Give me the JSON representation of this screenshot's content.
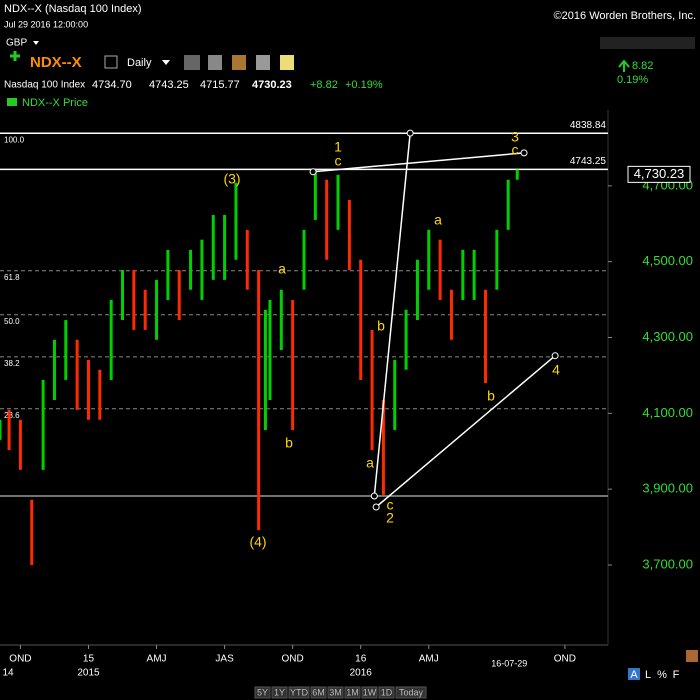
{
  "header": {
    "title": "NDX--X (Nasdaq 100 Index)",
    "datetime": "Jul 29 2016 12:00:00",
    "copyright": "©2016 Worden Brothers, Inc.",
    "currency": "GBP",
    "symbol": "NDX--X",
    "period": "Daily",
    "name": "Nasdaq 100 Index",
    "open": "4734.70",
    "high": "4743.25",
    "low": "4715.77",
    "last": "4730.23",
    "change": "+8.82",
    "change_pct": "+0.19%",
    "legend": "NDX--X Price",
    "side_change": "8.82",
    "side_change_pct": "0.19%"
  },
  "toolbar": [
    "5Y",
    "1Y",
    "YTD",
    "6M",
    "3M",
    "1M",
    "1W",
    "1D",
    "Today"
  ],
  "corner_buttons": [
    "A",
    "L",
    "%",
    "F"
  ],
  "chart_data": {
    "type": "ohlc",
    "x": [
      -0.9,
      -0.5,
      0,
      0.5,
      1,
      1.5,
      2,
      2.5,
      3,
      3.5,
      4,
      4.5,
      5,
      5.5,
      6,
      6.5,
      7,
      7.5,
      8,
      8.5,
      9,
      9.5,
      10,
      10.5,
      10.8,
      11,
      11.5,
      12,
      12.5,
      13,
      13.5,
      14,
      14.5,
      15,
      15.5,
      16,
      16.5,
      17,
      17.5,
      18,
      18.5,
      19,
      19.5,
      20,
      20.5,
      21,
      21.5,
      21.9
    ],
    "high": [
      4083,
      4109,
      4083,
      3872,
      4188,
      4294,
      4346,
      4294,
      4241,
      4215,
      4399,
      4478,
      4478,
      4426,
      4452,
      4531,
      4478,
      4531,
      4558,
      4623,
      4623,
      4708,
      4584,
      4478,
      4373,
      4399,
      4426,
      4399,
      4584,
      4742,
      4716,
      4729,
      4663,
      4505,
      4320,
      4135,
      4241,
      4373,
      4505,
      4584,
      4558,
      4426,
      4531,
      4531,
      4426,
      4584,
      4716,
      4743
    ],
    "low": [
      4030,
      4003,
      3951,
      3700,
      3951,
      4135,
      4188,
      4109,
      4083,
      4083,
      4188,
      4346,
      4320,
      4320,
      4294,
      4399,
      4346,
      4426,
      4399,
      4452,
      4452,
      4505,
      4426,
      3792,
      4056,
      4135,
      4267,
      4056,
      4426,
      4610,
      4505,
      4584,
      4478,
      4188,
      4003,
      3885,
      4056,
      4215,
      4346,
      4426,
      4399,
      4294,
      4399,
      4399,
      4180,
      4426,
      4584,
      4716
    ],
    "up_color": "#00d000",
    "down_color": "#ff2a00",
    "xlim": [
      -0.9,
      25.9
    ],
    "ylim": [
      3489,
      4900
    ],
    "xticks": [
      {
        "value": 0,
        "label": "OND"
      },
      {
        "value": 3,
        "label": "15"
      },
      {
        "value": 6,
        "label": "AMJ"
      },
      {
        "value": 9,
        "label": "JAS"
      },
      {
        "value": 12,
        "label": "OND"
      },
      {
        "value": 15,
        "label": "16"
      },
      {
        "value": 18,
        "label": "AMJ"
      },
      {
        "value": 24,
        "label": "OND"
      }
    ],
    "year_labels": [
      {
        "value": -0.6,
        "label": "14"
      },
      {
        "value": 3,
        "label": "2015"
      },
      {
        "value": 15,
        "label": "2016"
      }
    ],
    "current_date": {
      "value": 21.9,
      "label": "16-07-29"
    },
    "yticks": [
      {
        "value": 4700,
        "label": "4,700.00"
      },
      {
        "value": 4500,
        "label": "4,500.00"
      },
      {
        "value": 4300,
        "label": "4,300.00"
      },
      {
        "value": 4100,
        "label": "4,100.00"
      },
      {
        "value": 3900,
        "label": "3,900.00"
      },
      {
        "value": 3700,
        "label": "3,700.00"
      }
    ],
    "last_price": {
      "value": 4730.23,
      "label": "4,730.23"
    },
    "levels": [
      4838.84,
      4743.25
    ],
    "base_level": 3882,
    "fib_levels": [
      {
        "label": "100.0",
        "price": 4838.84
      },
      {
        "label": "61.8",
        "price": 4476
      },
      {
        "label": "50.0",
        "price": 4360
      },
      {
        "label": "38.2",
        "price": 4249
      },
      {
        "label": "23.6",
        "price": 4112
      }
    ],
    "trend_lines": [
      {
        "x": [
          15.6,
          17.18
        ],
        "y": [
          3882,
          4839
        ]
      },
      {
        "x": [
          12.9,
          22.2
        ],
        "y": [
          4737,
          4787
        ]
      },
      {
        "x": [
          15.68,
          23.57
        ],
        "y": [
          3853,
          4252
        ]
      }
    ],
    "wave_labels": [
      "1",
      "c",
      "(3)",
      "(4)",
      "a",
      "b",
      "a",
      "b",
      "a",
      "c",
      "2",
      "b",
      "3",
      "c",
      "4"
    ]
  }
}
